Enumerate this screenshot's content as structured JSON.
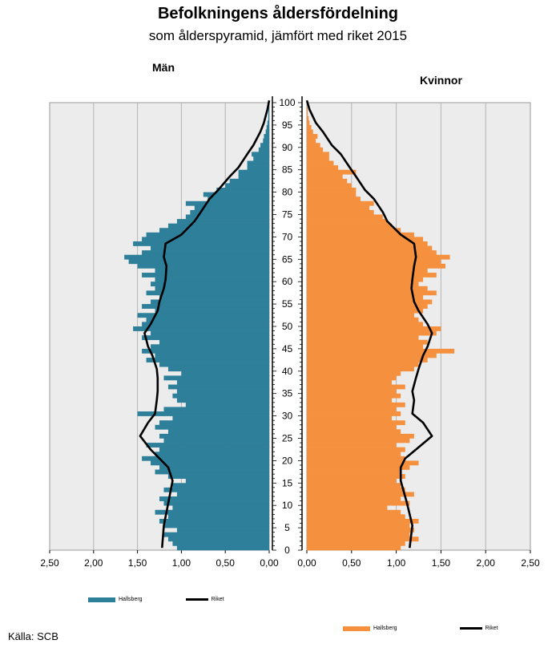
{
  "chart_data": {
    "type": "bar",
    "subtype": "population-pyramid",
    "title": "Befolkningens åldersfördelning",
    "subtitle": "som ålderspyramid, jämfört med riket 2015",
    "source": "Källa: SCB",
    "age_axis": {
      "ticks": [
        "0",
        "5",
        "10",
        "15",
        "20",
        "25",
        "30",
        "35",
        "40",
        "45",
        "50",
        "55",
        "60",
        "65",
        "70",
        "75",
        "80",
        "85",
        "90",
        "95",
        "100"
      ],
      "range": [
        0,
        100
      ]
    },
    "panels": [
      {
        "label": "Män",
        "direction": "left",
        "xlim": [
          0,
          2.5
        ],
        "xticks": [
          "2,50",
          "2,00",
          "1,50",
          "1,00",
          "0,50",
          "0,00"
        ],
        "bar_color": "#2e7f99",
        "series": [
          {
            "name": "Hallsberg",
            "ages": [
              0,
              1,
              2,
              3,
              4,
              5,
              6,
              7,
              8,
              9,
              10,
              11,
              12,
              13,
              14,
              15,
              16,
              17,
              18,
              19,
              20,
              21,
              22,
              23,
              24,
              25,
              26,
              27,
              28,
              29,
              30,
              31,
              32,
              33,
              34,
              35,
              36,
              37,
              38,
              39,
              40,
              41,
              42,
              43,
              44,
              45,
              46,
              47,
              48,
              49,
              50,
              51,
              52,
              53,
              54,
              55,
              56,
              57,
              58,
              59,
              60,
              61,
              62,
              63,
              64,
              65,
              66,
              67,
              68,
              69,
              70,
              71,
              72,
              73,
              74,
              75,
              76,
              77,
              78,
              79,
              80,
              81,
              82,
              83,
              84,
              85,
              86,
              87,
              88,
              89,
              90,
              91,
              92,
              93,
              94,
              95,
              96,
              97,
              98,
              99
            ],
            "values": [
              1.05,
              1.1,
              1.15,
              1.2,
              1.05,
              1.2,
              1.25,
              1.15,
              1.3,
              1.1,
              1.2,
              1.25,
              1.05,
              1.2,
              1.1,
              0.95,
              1.15,
              1.3,
              1.25,
              1.35,
              1.45,
              1.3,
              1.25,
              1.4,
              1.2,
              1.25,
              1.15,
              1.3,
              1.25,
              1.1,
              1.5,
              1.2,
              0.95,
              1.05,
              1.1,
              1.05,
              1.15,
              1.05,
              1.2,
              1.0,
              1.15,
              1.25,
              1.4,
              1.3,
              1.45,
              1.35,
              1.25,
              1.45,
              1.35,
              1.55,
              1.45,
              1.4,
              1.5,
              1.3,
              1.45,
              1.35,
              1.25,
              1.4,
              1.3,
              1.35,
              1.3,
              1.45,
              1.3,
              1.5,
              1.6,
              1.65,
              1.45,
              1.35,
              1.55,
              1.45,
              1.4,
              1.25,
              1.15,
              1.05,
              0.95,
              0.9,
              0.85,
              0.95,
              0.7,
              0.75,
              0.6,
              0.5,
              0.45,
              0.35,
              0.35,
              0.25,
              0.25,
              0.18,
              0.2,
              0.12,
              0.1,
              0.07,
              0.06,
              0.04,
              0.03,
              0.02,
              0.01,
              0.01,
              0.01,
              0.0
            ]
          },
          {
            "name": "Riket",
            "ages": [
              0,
              5,
              10,
              15,
              18,
              20,
              22,
              25,
              28,
              30,
              33,
              35,
              38,
              40,
              43,
              45,
              48,
              50,
              53,
              55,
              58,
              60,
              63,
              65,
              68,
              70,
              73,
              75,
              78,
              80,
              83,
              85,
              88,
              90,
              93,
              95,
              98,
              100
            ],
            "values": [
              1.22,
              1.2,
              1.15,
              1.1,
              1.15,
              1.25,
              1.35,
              1.47,
              1.38,
              1.3,
              1.28,
              1.27,
              1.27,
              1.28,
              1.33,
              1.38,
              1.42,
              1.35,
              1.27,
              1.25,
              1.2,
              1.18,
              1.17,
              1.2,
              1.18,
              1.0,
              0.85,
              0.78,
              0.68,
              0.58,
              0.45,
              0.35,
              0.25,
              0.18,
              0.1,
              0.06,
              0.02,
              0.0
            ]
          }
        ]
      },
      {
        "label": "Kvinnor",
        "direction": "right",
        "xlim": [
          0,
          2.5
        ],
        "xticks": [
          "0,00",
          "0,50",
          "1,00",
          "1,50",
          "2,00",
          "2,50"
        ],
        "bar_color": "#f5913e",
        "series": [
          {
            "name": "Hallsberg",
            "ages": [
              0,
              1,
              2,
              3,
              4,
              5,
              6,
              7,
              8,
              9,
              10,
              11,
              12,
              13,
              14,
              15,
              16,
              17,
              18,
              19,
              20,
              21,
              22,
              23,
              24,
              25,
              26,
              27,
              28,
              29,
              30,
              31,
              32,
              33,
              34,
              35,
              36,
              37,
              38,
              39,
              40,
              41,
              42,
              43,
              44,
              45,
              46,
              47,
              48,
              49,
              50,
              51,
              52,
              53,
              54,
              55,
              56,
              57,
              58,
              59,
              60,
              61,
              62,
              63,
              64,
              65,
              66,
              67,
              68,
              69,
              70,
              71,
              72,
              73,
              74,
              75,
              76,
              77,
              78,
              79,
              80,
              81,
              82,
              83,
              84,
              85,
              86,
              87,
              88,
              89,
              90,
              91,
              92,
              93,
              94,
              95,
              96,
              97,
              98,
              99
            ],
            "values": [
              1.05,
              1.1,
              1.25,
              1.15,
              1.2,
              1.15,
              1.25,
              1.1,
              1.05,
              0.9,
              1.15,
              1.05,
              1.2,
              1.1,
              1.05,
              1.0,
              1.1,
              1.05,
              1.15,
              1.25,
              1.1,
              1.05,
              1.1,
              1.0,
              1.15,
              1.2,
              1.05,
              1.0,
              1.1,
              0.95,
              1.05,
              1.0,
              1.1,
              0.95,
              1.05,
              1.0,
              1.1,
              0.95,
              1.0,
              1.05,
              1.2,
              1.25,
              1.35,
              1.45,
              1.65,
              1.3,
              1.35,
              1.25,
              1.45,
              1.5,
              1.3,
              1.25,
              1.2,
              1.3,
              1.35,
              1.4,
              1.3,
              1.45,
              1.35,
              1.25,
              1.3,
              1.45,
              1.35,
              1.55,
              1.5,
              1.6,
              1.45,
              1.4,
              1.35,
              1.3,
              1.2,
              1.05,
              0.95,
              0.9,
              0.85,
              0.75,
              0.7,
              0.75,
              0.6,
              0.55,
              0.55,
              0.5,
              0.45,
              0.4,
              0.55,
              0.35,
              0.3,
              0.25,
              0.25,
              0.18,
              0.15,
              0.1,
              0.12,
              0.07,
              0.05,
              0.03,
              0.02,
              0.01,
              0.01,
              0.0
            ]
          },
          {
            "name": "Riket",
            "ages": [
              0,
              5,
              10,
              15,
              18,
              20,
              22,
              25,
              28,
              30,
              33,
              35,
              38,
              40,
              43,
              45,
              48,
              50,
              53,
              55,
              58,
              60,
              63,
              65,
              68,
              70,
              73,
              75,
              78,
              80,
              83,
              85,
              88,
              90,
              93,
              95,
              98,
              100
            ],
            "values": [
              1.15,
              1.18,
              1.12,
              1.05,
              1.05,
              1.1,
              1.22,
              1.4,
              1.3,
              1.18,
              1.2,
              1.18,
              1.22,
              1.25,
              1.3,
              1.35,
              1.4,
              1.35,
              1.25,
              1.2,
              1.17,
              1.18,
              1.2,
              1.22,
              1.2,
              1.05,
              0.9,
              0.85,
              0.75,
              0.65,
              0.55,
              0.48,
              0.38,
              0.28,
              0.18,
              0.1,
              0.03,
              0.0
            ]
          }
        ]
      }
    ]
  },
  "legend": {
    "left": {
      "bar_label": "Hallsberg",
      "line_label": "Riket",
      "bar_color": "#2e7f99"
    },
    "right": {
      "bar_label": "Hallsberg",
      "line_label": "Riket",
      "bar_color": "#f5913e"
    }
  }
}
